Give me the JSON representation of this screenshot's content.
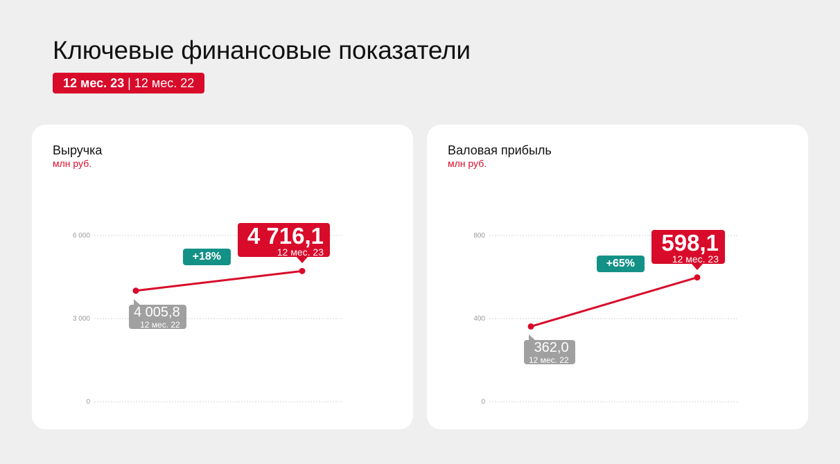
{
  "header": {
    "title": "Ключевые финансовые показатели",
    "period_current": "12 мес. 23",
    "period_separator": "|",
    "period_previous": "12 мес. 22"
  },
  "colors": {
    "accent": "#d80b2a",
    "growth": "#149187",
    "previous": "#a0a0a0",
    "grid": "#d6d6d6"
  },
  "chart_data": [
    {
      "type": "line",
      "title": "Выручка",
      "ylabel": "млн руб.",
      "ylim": [
        0,
        6000
      ],
      "yticks": [
        0,
        3000,
        6000
      ],
      "ytick_labels": [
        "0",
        "3 000",
        "6 000"
      ],
      "grid": true,
      "points": [
        {
          "period": "12 мес. 22",
          "value": 4005.8,
          "label": "4 005,8"
        },
        {
          "period": "12 мес. 23",
          "value": 4716.1,
          "label": "4 716,1"
        }
      ],
      "growth": "+18%"
    },
    {
      "type": "line",
      "title": "Валовая прибыль",
      "ylabel": "млн руб.",
      "ylim": [
        0,
        800
      ],
      "yticks": [
        0,
        400,
        800
      ],
      "ytick_labels": [
        "0",
        "400",
        "800"
      ],
      "grid": true,
      "points": [
        {
          "period": "12 мес. 22",
          "value": 362.0,
          "label": "362,0"
        },
        {
          "period": "12 мес. 23",
          "value": 598.1,
          "label": "598,1"
        }
      ],
      "growth": "+65%"
    }
  ]
}
